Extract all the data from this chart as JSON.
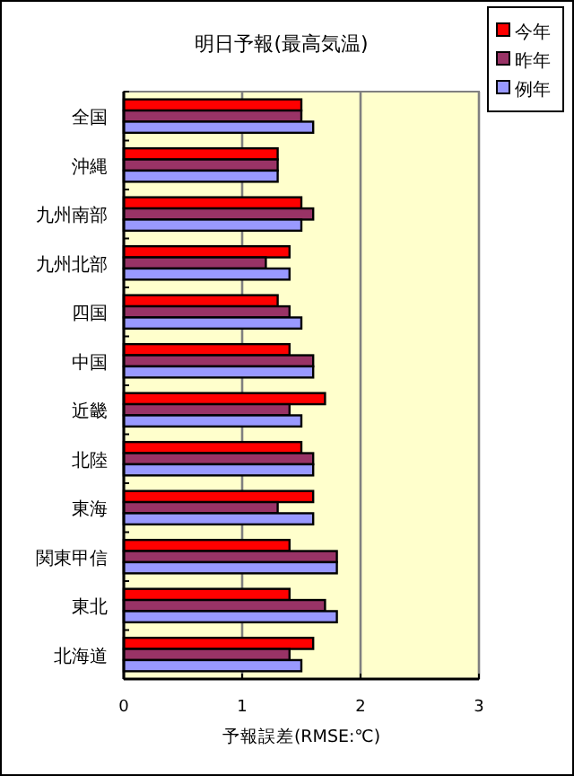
{
  "chart_data": {
    "type": "bar",
    "orientation": "horizontal",
    "title": "明日予報(最高気温)",
    "xlabel": "予報誤差(RMSE:℃)",
    "categories": [
      "全国",
      "沖縄",
      "九州南部",
      "九州北部",
      "四国",
      "中国",
      "近畿",
      "北陸",
      "東海",
      "関東甲信",
      "東北",
      "北海道"
    ],
    "series": [
      {
        "name": "今年",
        "color": "#ff0000",
        "values": [
          1.5,
          1.3,
          1.5,
          1.4,
          1.3,
          1.4,
          1.7,
          1.5,
          1.6,
          1.4,
          1.4,
          1.6
        ]
      },
      {
        "name": "昨年",
        "color": "#993366",
        "values": [
          1.5,
          1.3,
          1.6,
          1.2,
          1.4,
          1.6,
          1.4,
          1.6,
          1.3,
          1.8,
          1.7,
          1.4
        ]
      },
      {
        "name": "例年",
        "color": "#9999ff",
        "values": [
          1.6,
          1.3,
          1.5,
          1.4,
          1.5,
          1.6,
          1.5,
          1.6,
          1.6,
          1.8,
          1.8,
          1.5
        ]
      }
    ],
    "xlim": [
      0,
      3
    ],
    "xticks": [
      0,
      1,
      2,
      3
    ],
    "grid": "x",
    "legend": "top right"
  }
}
